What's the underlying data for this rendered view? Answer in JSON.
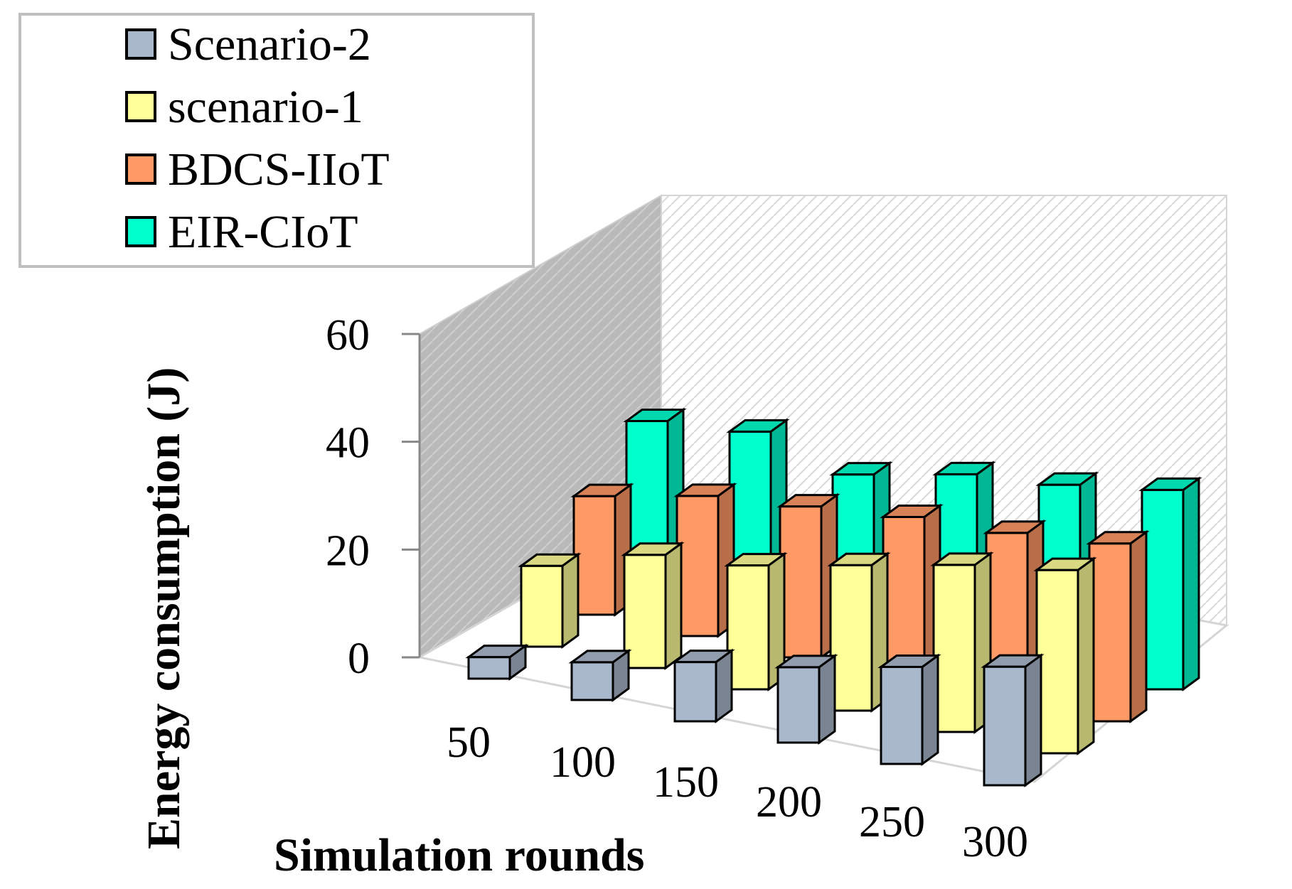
{
  "chart_data": {
    "type": "bar",
    "subtype": "3d-clustered-depth",
    "title": "",
    "xlabel": "Simulation rounds",
    "ylabel": "Energy consumption (J)",
    "categories": [
      "50",
      "100",
      "150",
      "200",
      "250",
      "300"
    ],
    "ylim": [
      0,
      60
    ],
    "yticks": [
      "0",
      "20",
      "40",
      "60"
    ],
    "legend_position": "top-left",
    "grid": false,
    "series": [
      {
        "name": "Scenario-2",
        "color": "#aab8cc",
        "values": [
          4,
          7,
          11,
          14,
          18,
          22
        ]
      },
      {
        "name": "scenario-1",
        "color": "#ffff99",
        "values": [
          15,
          21,
          23,
          27,
          31,
          34
        ]
      },
      {
        "name": "BDCS-IIoT",
        "color": "#ff9966",
        "values": [
          22,
          26,
          28,
          30,
          31,
          33
        ]
      },
      {
        "name": "EIR-CIoT",
        "color": "#00ffcc",
        "values": [
          30,
          32,
          28,
          32,
          34,
          37
        ]
      }
    ]
  }
}
